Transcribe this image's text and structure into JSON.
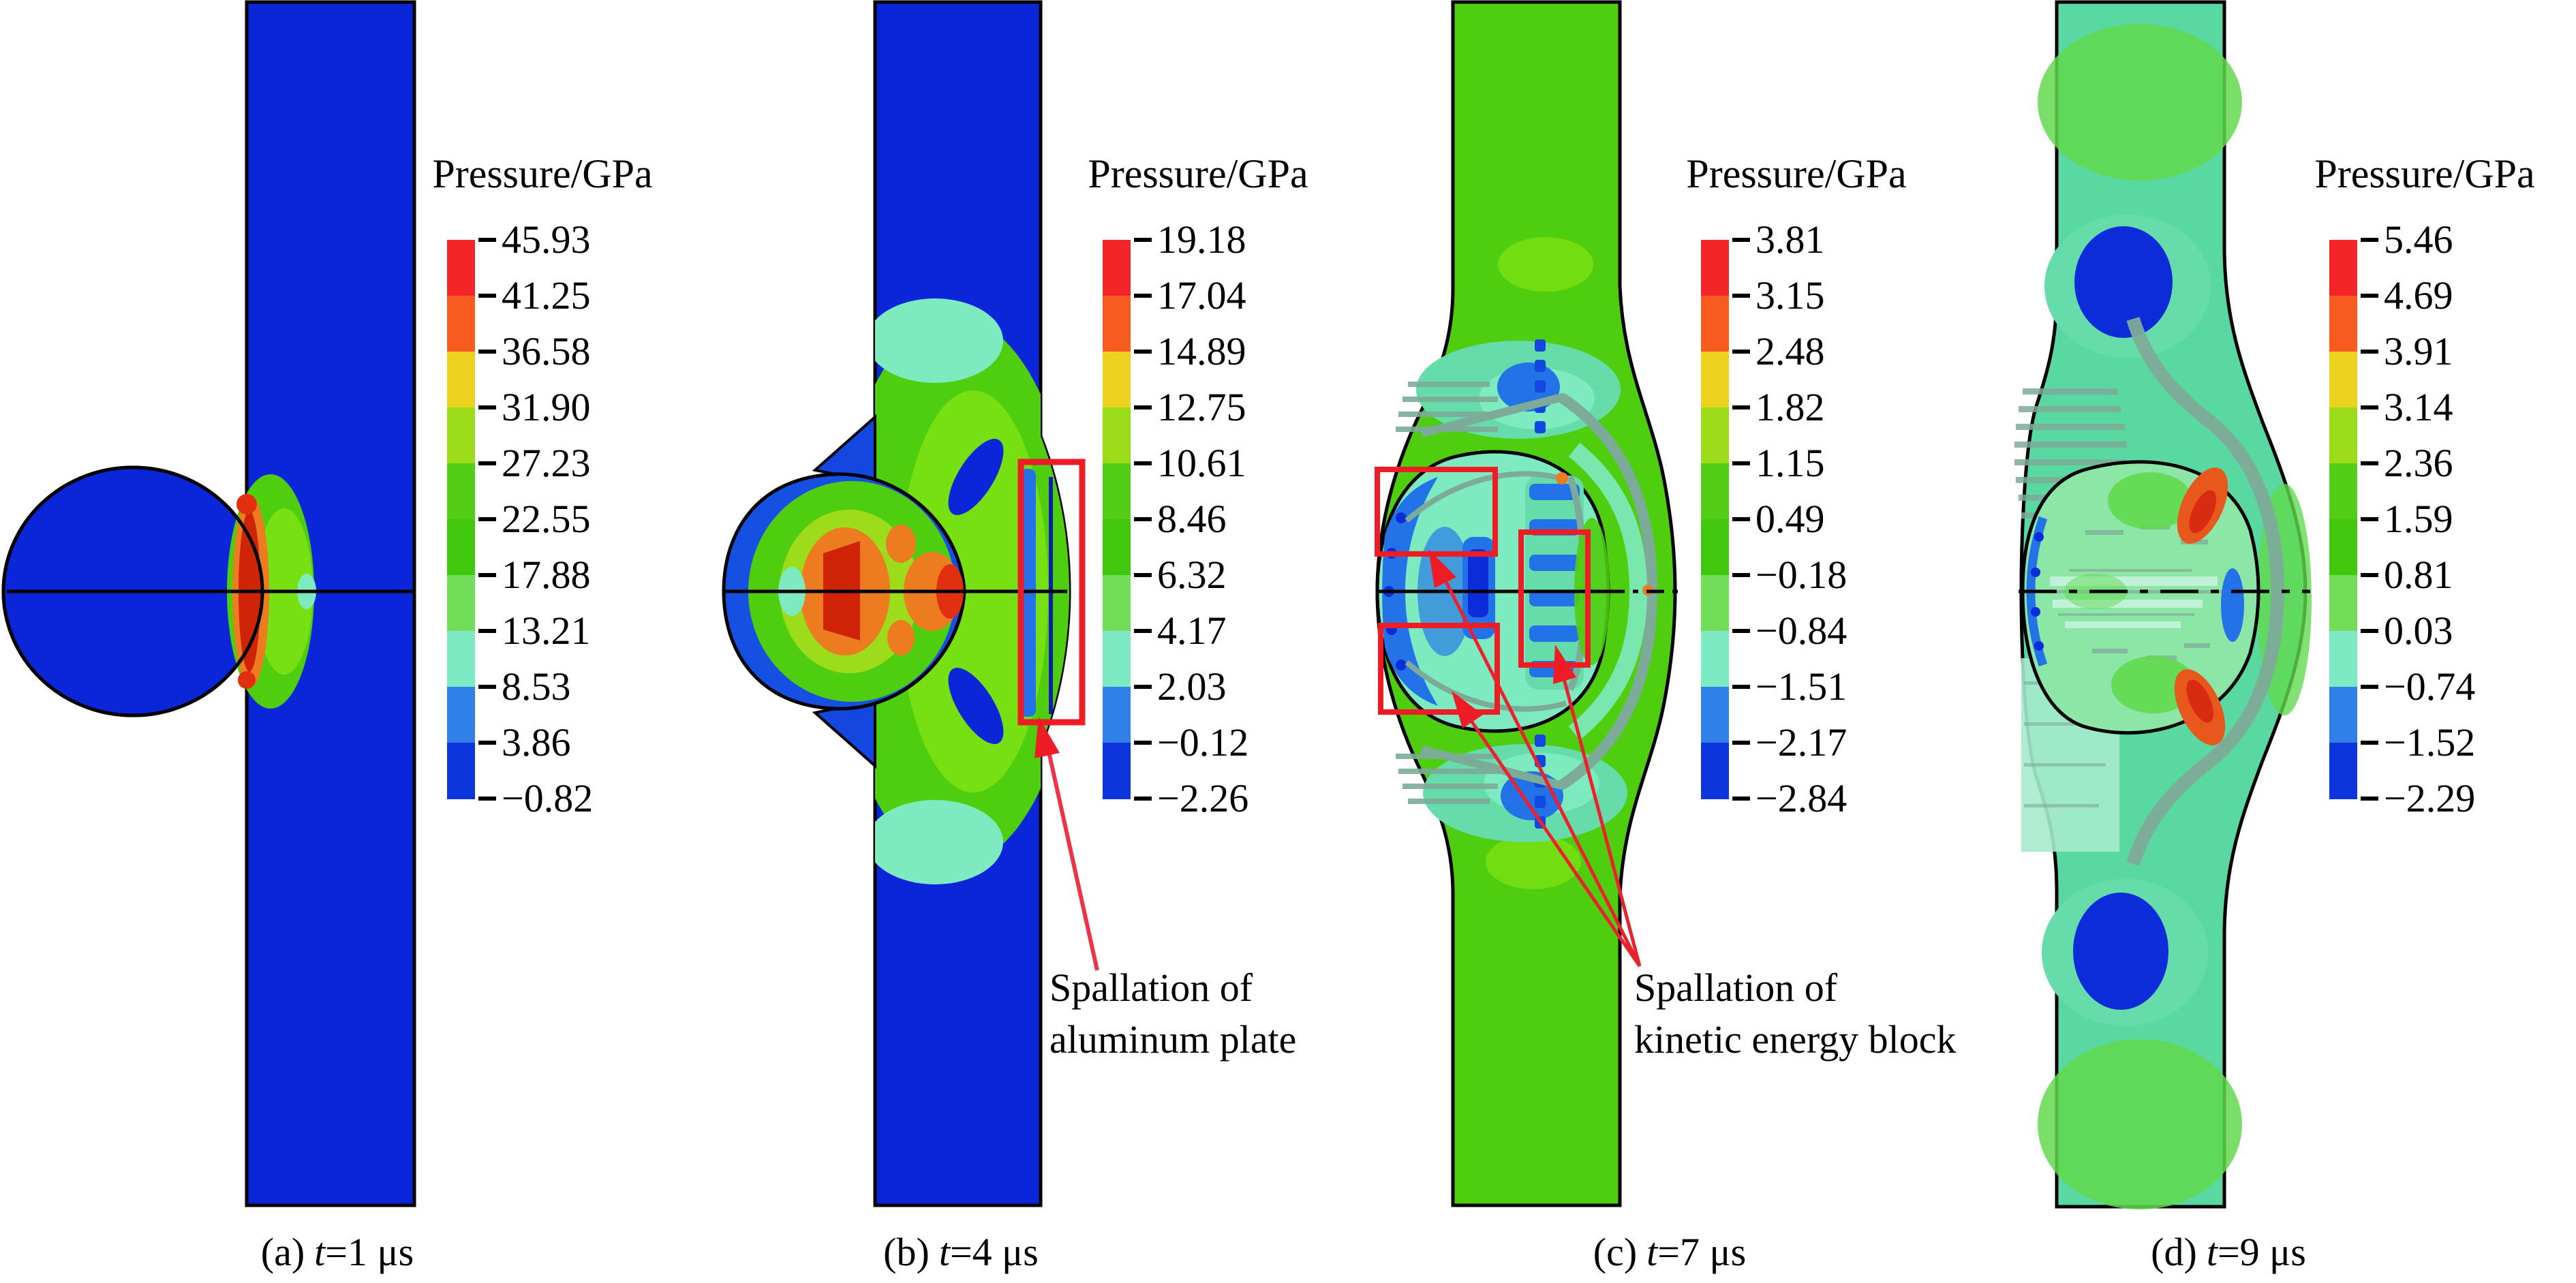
{
  "figure": {
    "kind": "hypervelocity impact simulation pressure contours",
    "n_panels": 4
  },
  "colors": {
    "palette": [
      "#f42529",
      "#f75b20",
      "#edd320",
      "#9cdc1b",
      "#54cd16",
      "#40c70e",
      "#72dd58",
      "#7eeac3",
      "#2f80e8",
      "#0d35dc"
    ],
    "plate_blue": "#0b25d8",
    "medium_blue": "#2472e8",
    "deep_blue": "#0b2cd8",
    "projectile_blue": "#1650e2",
    "panel_green": "#4fce10",
    "panel_green_light": "#76e012",
    "mint": "#7deac0",
    "teal_patch": "#66dcab",
    "sea_green": "#5ad8a2",
    "gray_green": "#7dab99",
    "red": "#e03010",
    "dark_red": "#cf2408",
    "orange": "#ec7c1f",
    "annotation_red": "#ee1c25",
    "arrow_red": "#ed3347"
  },
  "colorbars": [
    {
      "panel": "a",
      "title": "Pressure/GPa",
      "labels": [
        "45.93",
        "41.25",
        "36.58",
        "31.90",
        "27.23",
        "22.55",
        "17.88",
        "13.21",
        "8.53",
        "3.86",
        "−0.82"
      ]
    },
    {
      "panel": "b",
      "title": "Pressure/GPa",
      "labels": [
        "19.18",
        "17.04",
        "14.89",
        "12.75",
        "10.61",
        "8.46",
        "6.32",
        "4.17",
        "2.03",
        "−0.12",
        "−2.26"
      ]
    },
    {
      "panel": "c",
      "title": "Pressure/GPa",
      "labels": [
        "3.81",
        "3.15",
        "2.48",
        "1.82",
        "1.15",
        "0.49",
        "−0.18",
        "−0.84",
        "−1.51",
        "−2.17",
        "−2.84"
      ]
    },
    {
      "panel": "d",
      "title": "Pressure/GPa",
      "labels": [
        "5.46",
        "4.69",
        "3.91",
        "3.14",
        "2.36",
        "1.59",
        "0.81",
        "0.03",
        "−0.74",
        "−1.52",
        "−2.29"
      ]
    }
  ],
  "captions": [
    {
      "label": "(a)",
      "var": "t",
      "rest": "=1 μs"
    },
    {
      "label": "(b)",
      "var": "t",
      "rest": "=4 μs"
    },
    {
      "label": "(c)",
      "var": "t",
      "rest": "=7 μs"
    },
    {
      "label": "(d)",
      "var": "t",
      "rest": "=9 μs"
    }
  ],
  "annotations": [
    {
      "lines": [
        "Spallation of",
        "aluminum plate"
      ]
    },
    {
      "lines": [
        "Spallation of",
        "kinetic energy block"
      ]
    }
  ],
  "chart_data": [
    {
      "type": "heatmap",
      "subtype": "pressure contour field",
      "panel": "(a)",
      "time_label": "t=1 μs",
      "time_us": 1,
      "colorbar_title": "Pressure/GPa",
      "contour_levels_GPa": [
        45.93,
        41.25,
        36.58,
        31.9,
        27.23,
        22.55,
        17.88,
        13.21,
        8.53,
        3.86,
        -0.82
      ],
      "legend_position": "right of plate",
      "annotations": []
    },
    {
      "type": "heatmap",
      "subtype": "pressure contour field",
      "panel": "(b)",
      "time_label": "t=4 μs",
      "time_us": 4,
      "colorbar_title": "Pressure/GPa",
      "contour_levels_GPa": [
        19.18,
        17.04,
        14.89,
        12.75,
        10.61,
        8.46,
        6.32,
        4.17,
        2.03,
        -0.12,
        -2.26
      ],
      "legend_position": "right of plate",
      "annotations": [
        "Spallation of aluminum plate"
      ]
    },
    {
      "type": "heatmap",
      "subtype": "pressure contour field",
      "panel": "(c)",
      "time_label": "t=7 μs",
      "time_us": 7,
      "colorbar_title": "Pressure/GPa",
      "contour_levels_GPa": [
        3.81,
        3.15,
        2.48,
        1.82,
        1.15,
        0.49,
        -0.18,
        -0.84,
        -1.51,
        -2.17,
        -2.84
      ],
      "legend_position": "right of plate",
      "annotations": [
        "Spallation of kinetic energy block"
      ]
    },
    {
      "type": "heatmap",
      "subtype": "pressure contour field",
      "panel": "(d)",
      "time_label": "t=9 μs",
      "time_us": 9,
      "colorbar_title": "Pressure/GPa",
      "contour_levels_GPa": [
        5.46,
        4.69,
        3.91,
        3.14,
        2.36,
        1.59,
        0.81,
        0.03,
        -0.74,
        -1.52,
        -2.29
      ],
      "legend_position": "right of plate",
      "annotations": []
    }
  ]
}
